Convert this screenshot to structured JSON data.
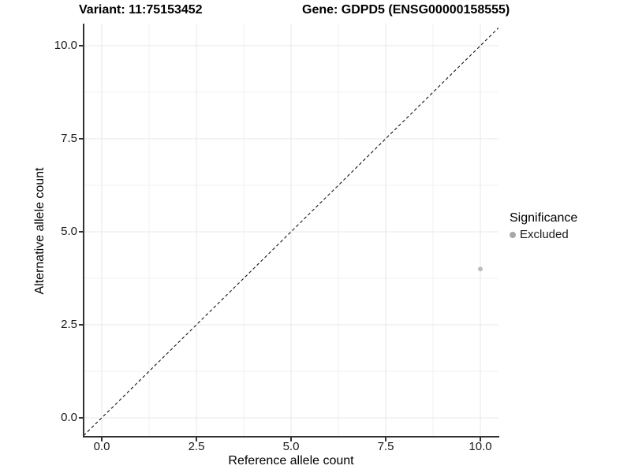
{
  "titles": {
    "variant": "Variant: 11:75153452",
    "gene": "Gene: GDPD5 (ENSG00000158555)"
  },
  "axes": {
    "x": {
      "label": "Reference allele count",
      "tick_labels": [
        "0.0",
        "2.5",
        "5.0",
        "7.5",
        "10.0"
      ]
    },
    "y": {
      "label": "Alternative allele count",
      "tick_labels": [
        "0.0",
        "2.5",
        "5.0",
        "7.5",
        "10.0"
      ]
    }
  },
  "legend": {
    "title": "Significance",
    "items": [
      {
        "label": "Excluded",
        "color": "#a8a8a8"
      }
    ]
  },
  "colors": {
    "axis_line": "#333333",
    "grid_major": "#e7e7e7",
    "grid_minor": "#f2f2f2",
    "reference_line": "#000000",
    "point": "#bdbdbd",
    "background": "#ffffff"
  },
  "chart_data": {
    "type": "scatter",
    "title": "Variant: 11:75153452 — Gene: GDPD5 (ENSG00000158555)",
    "xlabel": "Reference allele count",
    "ylabel": "Alternative allele count",
    "xlim": [
      -0.5,
      10.5
    ],
    "ylim": [
      -0.5,
      10.5
    ],
    "x_ticks": [
      0,
      2.5,
      5,
      7.5,
      10
    ],
    "y_ticks": [
      0,
      2.5,
      5,
      7.5,
      10
    ],
    "x_minor_ticks": [
      1.25,
      3.75,
      6.25,
      8.75
    ],
    "y_minor_ticks": [
      1.25,
      3.75,
      6.25,
      8.75
    ],
    "grid": "major+minor",
    "legend_position": "right",
    "series": [
      {
        "name": "Excluded",
        "color": "#bdbdbd",
        "points": [
          {
            "x": 10,
            "y": 4
          }
        ]
      }
    ],
    "reference_line": {
      "kind": "identity",
      "slope": 1,
      "intercept": 0,
      "style": "dashed",
      "color": "#000000"
    }
  }
}
